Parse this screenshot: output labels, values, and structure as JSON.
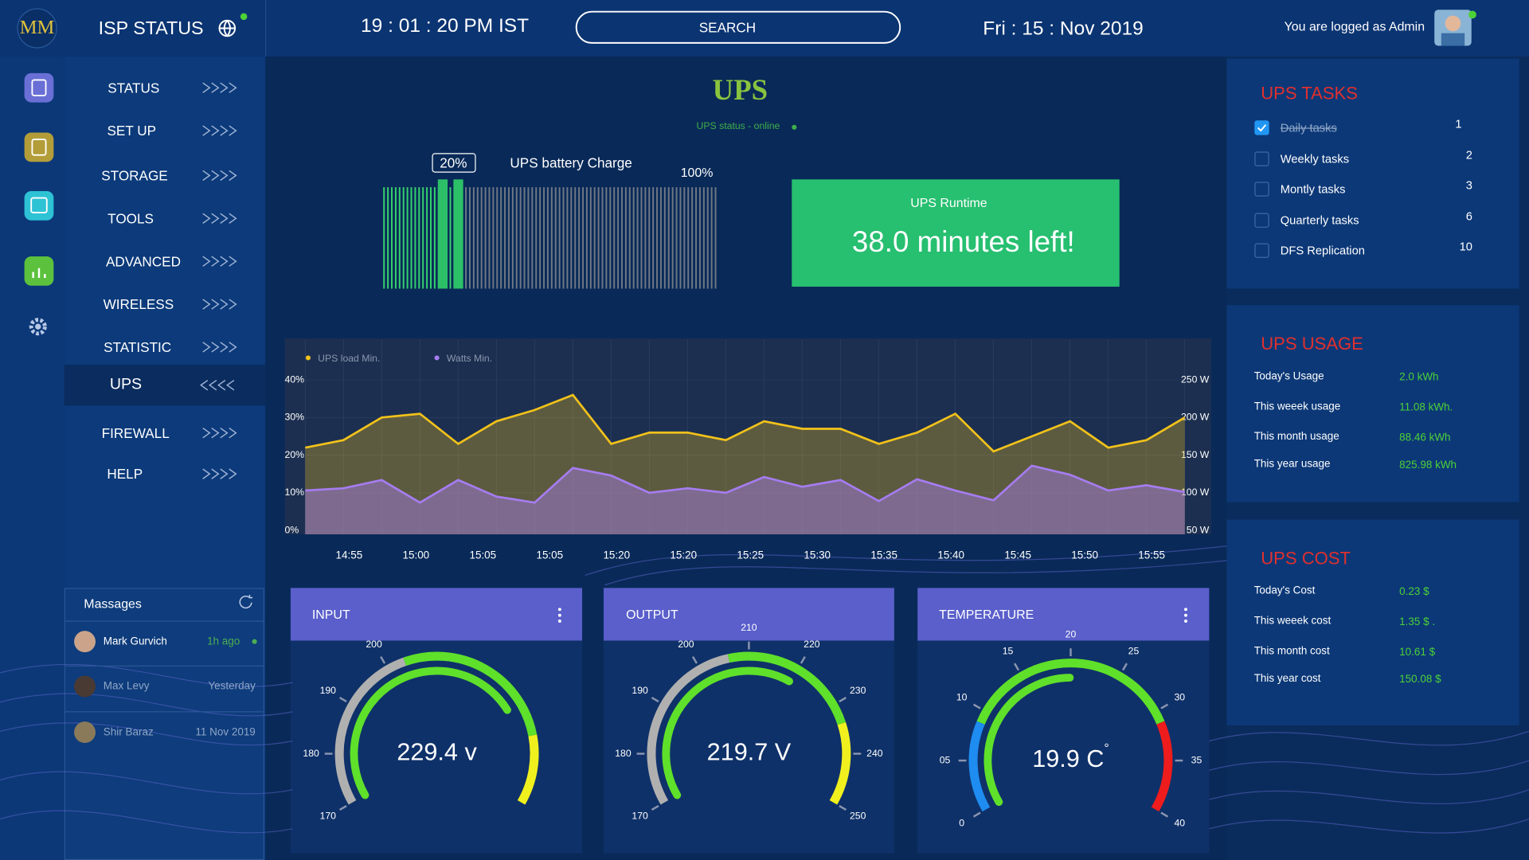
{
  "header": {
    "logo": "MM",
    "app_title": "ISP STATUS",
    "time": "19 : 01 : 20 PM IST",
    "search": "SEARCH",
    "date": "Fri : 15 : Nov 2019",
    "user": "You are logged as Admin"
  },
  "nav": {
    "items": [
      "STATUS",
      "SET UP",
      "STORAGE",
      "TOOLS",
      "ADVANCED",
      "WIRELESS",
      "STATISTIC",
      "UPS",
      "FIREWALL",
      "HELP"
    ],
    "active": 7
  },
  "messages": {
    "title": "Massages",
    "items": [
      {
        "name": "Mark Gurvich",
        "time": "1h ago"
      },
      {
        "name": "Max Levy",
        "time": "Yesterday"
      },
      {
        "name": "Shir Baraz",
        "time": "11 Nov 2019"
      }
    ]
  },
  "main": {
    "title": "UPS",
    "status": "UPS status -  online"
  },
  "battery": {
    "title": "UPS battery Charge",
    "value": 20,
    "value_label": "20%",
    "max_label": "100%",
    "range": [
      0,
      100
    ]
  },
  "runtime": {
    "title": "UPS Runtime",
    "text": "38.0 minutes left!"
  },
  "chart_data": {
    "type": "line",
    "xtick_labels": [
      "14:55",
      "15:00",
      "15:05",
      "15:05",
      "15:20",
      "15:20",
      "15:25",
      "15:30",
      "15:35",
      "15:40",
      "15:45",
      "15:50",
      "15:55"
    ],
    "series": [
      {
        "name": "UPS  load Min.",
        "color": "#f2c21b",
        "values": [
          22,
          24,
          30,
          31,
          23,
          29,
          32,
          36,
          23,
          26,
          26,
          24,
          29,
          27,
          27,
          23,
          26,
          31,
          21,
          25,
          29,
          22,
          24,
          30
        ]
      },
      {
        "name": "Watts Min.",
        "color": "#a67cf0",
        "axis": "y2",
        "values": [
          103,
          106,
          117,
          87,
          117,
          95,
          87,
          133,
          123,
          100,
          106,
          100,
          121,
          108,
          117,
          89,
          118,
          103,
          90,
          136,
          124,
          103,
          110,
          101
        ]
      }
    ],
    "ylim": [
      0,
      50
    ],
    "yticks": [
      {
        "value": 0,
        "label": "0%"
      },
      {
        "value": 10,
        "label": "10%"
      },
      {
        "value": 20,
        "label": "20%"
      },
      {
        "value": 30,
        "label": "30%"
      },
      {
        "value": 40,
        "label": "40%"
      }
    ],
    "y2lim": [
      50,
      300
    ],
    "y2ticks": [
      {
        "value": 50,
        "label": "50 W"
      },
      {
        "value": 100,
        "label": "100 W"
      },
      {
        "value": 150,
        "label": "150 W"
      },
      {
        "value": 200,
        "label": "200 W"
      },
      {
        "value": 250,
        "label": "250 W"
      }
    ],
    "grid": true
  },
  "gauges": [
    {
      "title": "INPUT",
      "value": 229.4,
      "value_label": "229.4 v",
      "range": [
        170,
        250
      ],
      "ticks": [
        170,
        180,
        190,
        200
      ]
    },
    {
      "title": "OUTPUT",
      "value": 219.7,
      "value_label": "219.7 V",
      "range": [
        170,
        250
      ],
      "ticks": [
        170,
        180,
        190,
        200,
        210,
        220,
        230,
        240,
        250
      ]
    },
    {
      "title": "TEMPERATURE",
      "value": 19.9,
      "value_label": "19.9  C",
      "unit_sup": "°",
      "range": [
        0,
        40
      ],
      "ticks": [
        0,
        {
          "value": 5,
          "label": "05"
        },
        10,
        15,
        20,
        25,
        30,
        35,
        40
      ]
    }
  ],
  "tasks": {
    "title": "UPS TASKS",
    "items": [
      {
        "label": "Daily tasks",
        "count": 1,
        "done": true
      },
      {
        "label": "Weekly tasks",
        "count": 2,
        "done": false
      },
      {
        "label": "Montly tasks",
        "count": 3,
        "done": false
      },
      {
        "label": "Quarterly tasks",
        "count": 6,
        "done": false
      },
      {
        "label": "DFS Replication",
        "count": 10,
        "done": false
      }
    ]
  },
  "usage": {
    "title": "UPS USAGE",
    "rows": [
      [
        "Today's Usage",
        "2.0  kWh"
      ],
      [
        "This weeek usage",
        "11.08  kWh."
      ],
      [
        "This month usage",
        "88.46  kWh"
      ],
      [
        "This year  usage",
        "825.98  kWh"
      ]
    ]
  },
  "cost": {
    "title": "UPS COST",
    "rows": [
      [
        "Today's Cost",
        "0.23   $"
      ],
      [
        "This weeek cost",
        "1.35   $ ."
      ],
      [
        "This month cost",
        "10.61   $"
      ],
      [
        "This year  cost",
        "150.08  $"
      ]
    ]
  }
}
